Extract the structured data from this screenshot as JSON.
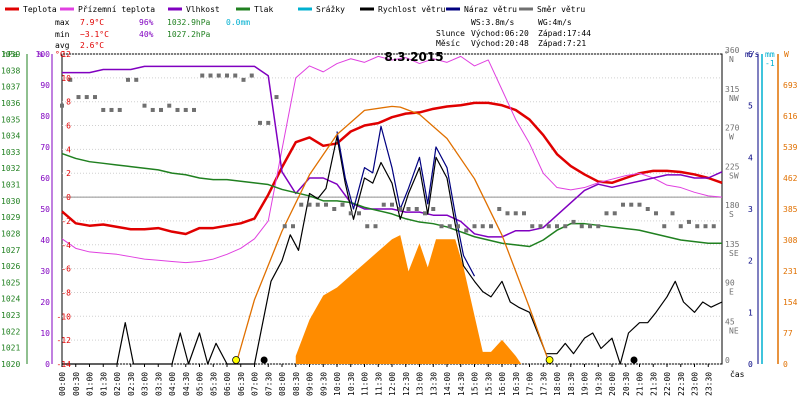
{
  "chart_data": {
    "type": "line",
    "title": "8.3.2015",
    "xlabel": "čas",
    "legend": [
      {
        "label": "Teplota",
        "color": "#e00000"
      },
      {
        "label": "Přízemní teplota",
        "color": "#e040e0"
      },
      {
        "label": "Vlhkost",
        "color": "#8000c0"
      },
      {
        "label": "Tlak",
        "color": "#208020"
      },
      {
        "label": "Srážky",
        "color": "#00b0d0"
      },
      {
        "label": "Rychlost větru",
        "color": "#000000"
      },
      {
        "label": "Náraz větru",
        "color": "#000080"
      },
      {
        "label": "Směr větru",
        "color": "#707070"
      }
    ],
    "stats": {
      "max": {
        "label": "max",
        "temp": "7.9°C",
        "hum": "96%",
        "press": "1032.9hPa",
        "rain": "0.0mm"
      },
      "min": {
        "label": "min",
        "temp": "−3.1°C",
        "hum": "40%",
        "press": "1027.2hPa"
      },
      "avg": {
        "label": "avg",
        "temp": "2.6°C"
      }
    },
    "info": {
      "ws": "WS:3.8m/s",
      "wg": "WG:4m/s",
      "slunce_label": "Slunce",
      "slunce_vychod": "Východ:06:20",
      "slunce_zapad": "Západ:17:44",
      "mesic_label": "Měsíc",
      "mesic_vychod": "Východ:20:48",
      "mesic_zapad": "Západ:7:21"
    },
    "axes": {
      "hpa": {
        "label": "hPa",
        "range": [
          1020,
          1039
        ],
        "color": "#208020"
      },
      "pct": {
        "label": "%",
        "range": [
          0,
          100
        ],
        "color": "#8000c0"
      },
      "temp": {
        "label": "°C",
        "range": [
          -14,
          12
        ],
        "color": "#e00000"
      },
      "dir": {
        "label": "°",
        "ticks": [
          "0",
          "45 NE",
          "90 E",
          "135 SE",
          "180 S",
          "225 SW",
          "270 W",
          "315 NW",
          "360 N"
        ]
      },
      "ms": {
        "label": "m/s",
        "range": [
          0,
          6
        ],
        "color": "#000080"
      },
      "mm": {
        "label": "mm",
        "range": [
          0,
          1
        ],
        "color": "#00b0d0"
      },
      "wm2": {
        "label": "W",
        "ticks": [
          0,
          77,
          154,
          231,
          308,
          385,
          462,
          539,
          616,
          693
        ],
        "color": "#e07000"
      }
    },
    "x_ticks": [
      "00:00",
      "00:30",
      "01:00",
      "01:30",
      "02:00",
      "02:30",
      "03:00",
      "03:30",
      "04:00",
      "04:30",
      "05:00",
      "05:30",
      "06:00",
      "06:30",
      "07:00",
      "07:30",
      "08:00",
      "08:30",
      "09:00",
      "09:30",
      "10:00",
      "10:30",
      "11:00",
      "11:30",
      "12:00",
      "12:30",
      "13:00",
      "13:30",
      "14:00",
      "14:30",
      "15:00",
      "15:30",
      "16:00",
      "16:30",
      "17:00",
      "17:30",
      "18:00",
      "18:30",
      "19:00",
      "19:30",
      "20:00",
      "20:30",
      "21:00",
      "21:30",
      "22:00",
      "22:30",
      "23:00",
      "23:30"
    ],
    "series": [
      {
        "name": "Teplota",
        "color": "#e00000",
        "axis": "temp",
        "x": [
          0,
          0.5,
          1,
          1.5,
          2,
          2.5,
          3,
          3.5,
          4,
          4.5,
          5,
          5.5,
          6,
          6.5,
          7,
          7.5,
          8,
          8.5,
          9,
          9.5,
          10,
          10.5,
          11,
          11.5,
          12,
          12.5,
          13,
          13.5,
          14,
          14.5,
          15,
          15.5,
          16,
          16.5,
          17,
          17.5,
          18,
          18.5,
          19,
          19.5,
          20,
          20.5,
          21,
          21.5,
          22,
          22.5,
          23,
          23.5,
          24
        ],
        "y": [
          -1.2,
          -2.2,
          -2.4,
          -2.3,
          -2.5,
          -2.7,
          -2.7,
          -2.6,
          -2.9,
          -3.1,
          -2.6,
          -2.6,
          -2.4,
          -2.2,
          -1.8,
          0.2,
          2.5,
          4.6,
          5.0,
          4.3,
          4.5,
          5.5,
          6.0,
          6.2,
          6.7,
          7.0,
          7.1,
          7.4,
          7.6,
          7.7,
          7.9,
          7.9,
          7.7,
          7.3,
          6.5,
          5.2,
          3.6,
          2.6,
          1.9,
          1.3,
          1.2,
          1.6,
          2.0,
          2.2,
          2.2,
          2.1,
          1.9,
          1.6,
          1.2
        ]
      },
      {
        "name": "Přízemní teplota",
        "color": "#e040e0",
        "axis": "temp",
        "x": [
          0,
          0.5,
          1,
          1.5,
          2,
          2.5,
          3,
          3.5,
          4,
          4.5,
          5,
          5.5,
          6,
          6.5,
          7,
          7.5,
          8,
          8.5,
          9,
          9.5,
          10,
          10.5,
          11,
          11.5,
          12,
          12.5,
          13,
          13.5,
          14,
          14.5,
          15,
          15.5,
          16,
          16.5,
          17,
          17.5,
          18,
          18.5,
          19,
          19.5,
          20,
          20.5,
          21,
          21.5,
          22,
          22.5,
          23,
          23.5,
          24
        ],
        "y": [
          -3.5,
          -4.3,
          -4.6,
          -4.7,
          -4.8,
          -5.0,
          -5.2,
          -5.3,
          -5.4,
          -5.5,
          -5.4,
          -5.2,
          -4.8,
          -4.3,
          -3.5,
          -2.0,
          4.0,
          10.0,
          11.0,
          10.5,
          11.2,
          11.6,
          11.3,
          11.8,
          11.5,
          11.7,
          11.2,
          11.6,
          11.3,
          11.8,
          11.0,
          11.5,
          9.0,
          6.5,
          4.5,
          2.0,
          0.8,
          0.6,
          0.8,
          1.2,
          1.5,
          1.8,
          2.0,
          1.6,
          1.0,
          0.8,
          0.4,
          0.1,
          0.0
        ]
      },
      {
        "name": "Vlhkost",
        "color": "#8000c0",
        "axis": "pct",
        "x": [
          0,
          0.5,
          1,
          1.5,
          2,
          2.5,
          3,
          3.5,
          4,
          4.5,
          5,
          5.5,
          6,
          6.5,
          7,
          7.5,
          8,
          8.5,
          9,
          9.5,
          10,
          10.5,
          11,
          11.5,
          12,
          12.5,
          13,
          13.5,
          14,
          14.5,
          15,
          15.5,
          16,
          16.5,
          17,
          17.5,
          18,
          18.5,
          19,
          19.5,
          20,
          20.5,
          21,
          21.5,
          22,
          22.5,
          23,
          23.5,
          24
        ],
        "y": [
          94,
          94,
          94,
          95,
          95,
          95,
          96,
          96,
          96,
          96,
          96,
          96,
          96,
          96,
          96,
          93,
          62,
          55,
          60,
          60,
          58,
          52,
          50,
          50,
          50,
          49,
          49,
          48,
          48,
          46,
          42,
          41,
          41,
          43,
          43,
          44,
          48,
          52,
          56,
          58,
          57,
          58,
          59,
          60,
          61,
          61,
          60,
          60,
          62
        ]
      },
      {
        "name": "Tlak",
        "color": "#208020",
        "axis": "hpa",
        "x": [
          0,
          0.5,
          1,
          1.5,
          2,
          2.5,
          3,
          3.5,
          4,
          4.5,
          5,
          5.5,
          6,
          6.5,
          7,
          7.5,
          8,
          8.5,
          9,
          9.5,
          10,
          10.5,
          11,
          11.5,
          12,
          12.5,
          13,
          13.5,
          14,
          14.5,
          15,
          15.5,
          16,
          16.5,
          17,
          17.5,
          18,
          18.5,
          19,
          19.5,
          20,
          20.5,
          21,
          21.5,
          22,
          22.5,
          23,
          23.5,
          24
        ],
        "y": [
          1032.9,
          1032.6,
          1032.4,
          1032.3,
          1032.2,
          1032.1,
          1032.0,
          1031.9,
          1031.7,
          1031.6,
          1031.4,
          1031.3,
          1031.3,
          1031.2,
          1031.1,
          1031.0,
          1030.7,
          1030.5,
          1030.3,
          1030.0,
          1030.0,
          1029.9,
          1029.6,
          1029.4,
          1029.2,
          1028.9,
          1028.7,
          1028.6,
          1028.4,
          1028.1,
          1027.8,
          1027.6,
          1027.4,
          1027.3,
          1027.2,
          1027.6,
          1028.2,
          1028.6,
          1028.6,
          1028.5,
          1028.4,
          1028.3,
          1028.2,
          1028.0,
          1027.8,
          1027.6,
          1027.5,
          1027.4,
          1027.4
        ]
      },
      {
        "name": "Rychlost větru",
        "color": "#000000",
        "axis": "ms",
        "x": [
          0,
          1,
          1.5,
          2,
          2.3,
          2.6,
          3,
          3.5,
          4,
          4.3,
          4.6,
          5,
          5.3,
          5.6,
          6,
          6.5,
          7,
          7.3,
          7.6,
          8,
          8.3,
          8.6,
          9,
          9.3,
          9.6,
          10,
          10.3,
          10.6,
          11,
          11.3,
          11.6,
          12,
          12.3,
          12.6,
          13,
          13.3,
          13.6,
          14,
          14.3,
          14.6,
          15,
          15.3,
          15.6,
          16,
          16.3,
          16.6,
          17,
          17.3,
          17.6,
          18,
          18.3,
          18.6,
          19,
          19.3,
          19.6,
          20,
          20.3,
          20.6,
          21,
          21.3,
          21.6,
          22,
          22.3,
          22.6,
          23,
          23.3,
          23.6,
          24
        ],
        "y": [
          0,
          0,
          0,
          0,
          0.8,
          0,
          0,
          0,
          0,
          0.6,
          0,
          0.6,
          0,
          0.4,
          0,
          0,
          0,
          0.8,
          1.6,
          2.0,
          2.5,
          2.2,
          3.3,
          3.2,
          3.4,
          4.4,
          3.5,
          2.8,
          3.6,
          3.5,
          3.9,
          3.5,
          2.8,
          3.3,
          3.8,
          2.9,
          4.0,
          3.6,
          2.7,
          1.9,
          1.6,
          1.4,
          1.3,
          1.6,
          1.2,
          1.1,
          1.0,
          0.6,
          0.2,
          0.2,
          0.4,
          0.2,
          0.5,
          0.6,
          0.3,
          0.5,
          0.0,
          0.6,
          0.8,
          0.8,
          1.0,
          1.3,
          1.6,
          1.2,
          1.0,
          1.2,
          1.1,
          1.2
        ]
      },
      {
        "name": "Náraz větru",
        "color": "#000080",
        "axis": "ms",
        "x": [
          10,
          10.3,
          10.6,
          11,
          11.3,
          11.6,
          12,
          12.3,
          12.6,
          13,
          13.3,
          13.6,
          14,
          14.3,
          14.6,
          15
        ],
        "y": [
          4.5,
          3.6,
          3.0,
          3.8,
          3.7,
          4.6,
          3.8,
          3.0,
          3.4,
          4.0,
          3.1,
          4.2,
          3.8,
          2.9,
          2.1,
          1.7
        ]
      },
      {
        "name": "Slunce",
        "color": "#e07000",
        "axis": "wm2",
        "x": [
          6.33,
          7,
          8,
          9,
          10,
          11,
          12,
          12.3,
          13,
          14,
          15,
          16,
          17,
          17.73
        ],
        "y": [
          0,
          160,
          330,
          470,
          570,
          630,
          640,
          638,
          620,
          560,
          460,
          320,
          140,
          0
        ]
      }
    ],
    "radiation": {
      "axis": "wm2",
      "color": "#ff8c00",
      "x": [
        8.5,
        9,
        9.5,
        10,
        10.5,
        11,
        11.5,
        12,
        12.3,
        12.6,
        13,
        13.3,
        13.6,
        14,
        14.3,
        14.6,
        15,
        15.3,
        15.6,
        16,
        16.5,
        16.7
      ],
      "y": [
        20,
        110,
        170,
        190,
        220,
        250,
        280,
        310,
        320,
        230,
        300,
        240,
        310,
        310,
        310,
        240,
        120,
        30,
        30,
        60,
        20,
        0
      ]
    },
    "wind_direction": {
      "axis": "dir",
      "color": "#707070",
      "x": [
        0,
        0.3,
        0.6,
        0.9,
        1.2,
        1.5,
        1.8,
        2.1,
        2.4,
        2.7,
        3,
        3.3,
        3.6,
        3.9,
        4.2,
        4.5,
        4.8,
        5.1,
        5.4,
        5.7,
        6,
        6.3,
        6.6,
        6.9,
        7.2,
        7.5,
        7.8,
        8.1,
        8.4,
        8.7,
        9,
        9.3,
        9.6,
        9.9,
        10.2,
        10.5,
        10.8,
        11.1,
        11.4,
        11.7,
        12,
        12.3,
        12.6,
        12.9,
        13.2,
        13.5,
        13.8,
        14.1,
        14.4,
        14.7,
        15,
        15.3,
        15.6,
        15.9,
        16.2,
        16.5,
        16.8,
        17.1,
        17.4,
        17.7,
        18,
        18.3,
        18.6,
        18.9,
        19.2,
        19.5,
        19.8,
        20.1,
        20.4,
        20.7,
        21,
        21.3,
        21.6,
        21.9,
        22.2,
        22.5,
        22.8,
        23.1,
        23.4,
        23.7
      ],
      "y": [
        300,
        330,
        310,
        310,
        310,
        295,
        295,
        295,
        330,
        330,
        300,
        295,
        295,
        300,
        295,
        295,
        295,
        335,
        335,
        335,
        335,
        335,
        330,
        335,
        280,
        280,
        310,
        160,
        160,
        185,
        185,
        185,
        185,
        180,
        185,
        175,
        175,
        160,
        160,
        185,
        185,
        180,
        180,
        180,
        175,
        180,
        160,
        160,
        160,
        155,
        160,
        160,
        160,
        180,
        175,
        175,
        175,
        160,
        160,
        160,
        160,
        160,
        165,
        160,
        160,
        160,
        175,
        175,
        185,
        185,
        185,
        180,
        175,
        160,
        175,
        160,
        165,
        160,
        160,
        160
      ]
    },
    "markers": [
      {
        "kind": "sun",
        "x": 6.33
      },
      {
        "kind": "sun",
        "x": 17.73
      },
      {
        "kind": "moon",
        "x": 7.35
      },
      {
        "kind": "moon",
        "x": 20.8
      }
    ]
  }
}
